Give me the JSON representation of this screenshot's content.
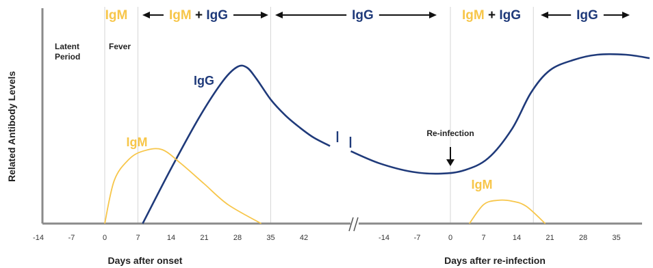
{
  "chart_data": {
    "type": "line",
    "ylabel": "Related Antibody Levels",
    "panels": [
      {
        "xlabel": "Days after onset",
        "ticks": [
          -14,
          -7,
          0,
          7,
          14,
          21,
          28,
          35,
          42
        ],
        "xlim": [
          -17,
          49
        ]
      },
      {
        "xlabel": "Days after re-infection",
        "ticks": [
          -14,
          -7,
          0,
          7,
          14,
          21,
          28,
          35
        ],
        "xlim": [
          -24,
          42
        ]
      }
    ],
    "phases": [
      {
        "label": "IgM",
        "parts": [
          {
            "text": "IgM",
            "color": "igm"
          }
        ],
        "arrow_left": false,
        "arrow_right": false
      },
      {
        "label": "IgM + IgG",
        "parts": [
          {
            "text": "IgM",
            "color": "igm"
          },
          {
            "text": " + ",
            "color": "dark"
          },
          {
            "text": "IgG",
            "color": "igg"
          }
        ],
        "arrow_left": true,
        "arrow_right": true
      },
      {
        "label": "IgG",
        "parts": [
          {
            "text": "IgG",
            "color": "igg"
          }
        ],
        "arrow_left": true,
        "arrow_right": true
      },
      {
        "label": "IgM + IgG",
        "parts": [
          {
            "text": "IgM",
            "color": "igm"
          },
          {
            "text": " + ",
            "color": "dark"
          },
          {
            "text": "IgG",
            "color": "igg"
          }
        ],
        "arrow_left": false,
        "arrow_right": false
      },
      {
        "label": "IgG",
        "parts": [
          {
            "text": "IgG",
            "color": "igg"
          }
        ],
        "arrow_left": true,
        "arrow_right": true
      }
    ],
    "region_labels": [
      {
        "lines": [
          "Latent",
          "Period"
        ]
      },
      {
        "lines": [
          "Fever"
        ]
      }
    ],
    "annotations": {
      "reinfection": "Re-infection"
    },
    "series": [
      {
        "name": "IgG",
        "color": "#1f3a7a",
        "panel": 0,
        "label": "IgG",
        "x": [
          8,
          14,
          20,
          25,
          28,
          30,
          32,
          35,
          38,
          41,
          44,
          47.5
        ],
        "y": [
          0,
          0.32,
          0.62,
          0.83,
          0.91,
          0.905,
          0.84,
          0.72,
          0.63,
          0.56,
          0.5,
          0.45
        ]
      },
      {
        "name": "IgM",
        "color": "#f7c64a",
        "panel": 0,
        "label": "IgM",
        "x": [
          0,
          2,
          5,
          8,
          12,
          16,
          21,
          26,
          33
        ],
        "y": [
          0,
          0.25,
          0.37,
          0.42,
          0.43,
          0.35,
          0.23,
          0.11,
          0
        ]
      },
      {
        "name": "IgG",
        "color": "#1f3a7a",
        "panel": 1,
        "label": "",
        "x": [
          -21,
          -15,
          -8,
          -2,
          3,
          8,
          13,
          17,
          21,
          26,
          31,
          37,
          42
        ],
        "y": [
          0.42,
          0.35,
          0.3,
          0.29,
          0.31,
          0.38,
          0.55,
          0.76,
          0.89,
          0.95,
          0.98,
          0.98,
          0.96
        ]
      },
      {
        "name": "IgM",
        "color": "#f7c64a",
        "panel": 1,
        "label": "IgM",
        "x": [
          4,
          7,
          10,
          13,
          16,
          20
        ],
        "y": [
          0,
          0.11,
          0.135,
          0.13,
          0.1,
          0
        ]
      }
    ],
    "colors": {
      "igm": "#f7c64a",
      "igg": "#1f3a7a",
      "dark": "#111111",
      "axis": "#8a8a8a",
      "grid": "#d6d6d6"
    }
  }
}
